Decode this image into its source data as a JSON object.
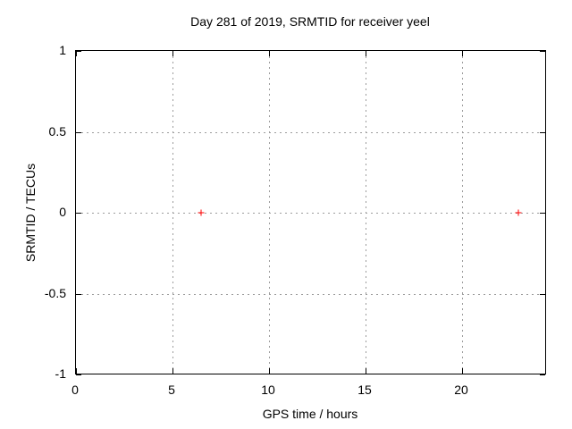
{
  "chart_data": {
    "type": "scatter",
    "title": "Day 281 of 2019, SRMTID for receiver yeel",
    "xlabel": "GPS time / hours",
    "ylabel": "SRMTID / TECUs",
    "xlim": [
      0,
      24.35
    ],
    "ylim": [
      -1,
      1
    ],
    "xticks": [
      {
        "value": 0,
        "label": "0"
      },
      {
        "value": 5,
        "label": "5"
      },
      {
        "value": 10,
        "label": "10"
      },
      {
        "value": 15,
        "label": "15"
      },
      {
        "value": 20,
        "label": "20"
      }
    ],
    "yticks": [
      {
        "value": -1,
        "label": "-1"
      },
      {
        "value": -0.5,
        "label": "-0.5"
      },
      {
        "value": 0,
        "label": "0"
      },
      {
        "value": 0.5,
        "label": "0.5"
      },
      {
        "value": 1,
        "label": "1"
      }
    ],
    "grid": true,
    "legend_position": "none",
    "marker": "plus",
    "colors": {
      "marker": "#ff0000",
      "grid": "#9c9c9c",
      "axis": "#000000",
      "background": "#ffffff",
      "text": "#000000"
    },
    "series": [
      {
        "name": "SRMTID",
        "points": [
          {
            "x": 6.5,
            "y": 0
          },
          {
            "x": 22.9,
            "y": 0
          }
        ]
      }
    ]
  }
}
